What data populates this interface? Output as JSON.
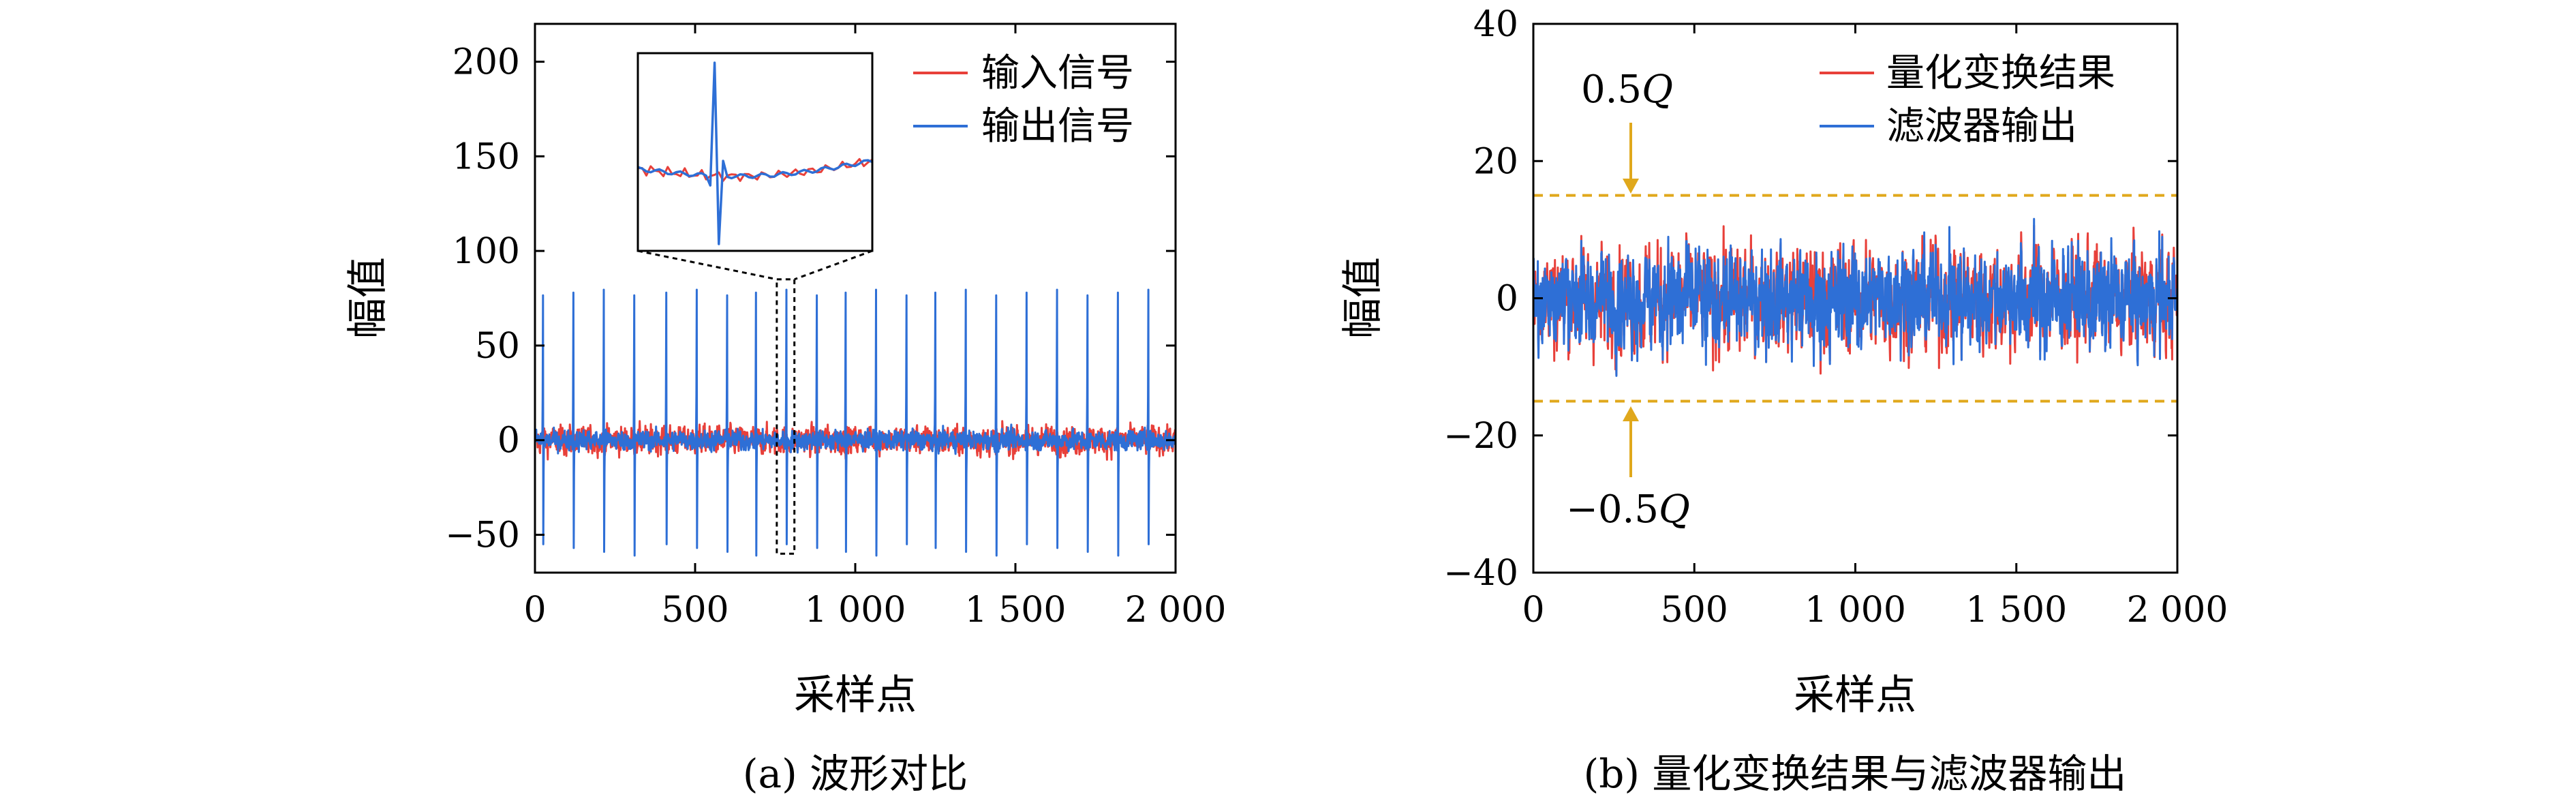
{
  "chart_data": [
    {
      "type": "line",
      "panel": "a",
      "caption": "(a) 波形对比",
      "xlabel": "采样点",
      "ylabel": "幅值",
      "xlim": [
        0,
        2000
      ],
      "ylim": [
        -70,
        220
      ],
      "xticks": [
        0,
        500,
        1000,
        1500,
        2000
      ],
      "xtick_labels": [
        "0",
        "500",
        "1 000",
        "1 500",
        "2 000"
      ],
      "yticks": [
        -50,
        0,
        50,
        100,
        150,
        200
      ],
      "ytick_labels": [
        "−50",
        "0",
        "50",
        "100",
        "150",
        "200"
      ],
      "legend": "top-right",
      "grid": false,
      "series": [
        {
          "name": "输入信号",
          "color": "#e8403a",
          "kind": "noise",
          "amplitude": 7,
          "samples": 2000
        },
        {
          "name": "输出信号",
          "color": "#2e6fd6",
          "kind": "spike-train",
          "spike_positions": [
            25,
            120,
            215,
            310,
            410,
            505,
            600,
            690,
            785,
            880,
            970,
            1065,
            1160,
            1250,
            1345,
            1440,
            1535,
            1630,
            1725,
            1820,
            1915
          ],
          "spike_peak": 78,
          "spike_trough": -55,
          "baseline_amplitude": 5
        }
      ],
      "inset": {
        "zoom_x_range": [
          755,
          810
        ],
        "zoom_y_range": [
          -60,
          85
        ]
      }
    },
    {
      "type": "line",
      "panel": "b",
      "caption": "(b) 量化变换结果与滤波器输出",
      "xlabel": "采样点",
      "ylabel": "幅值",
      "xlim": [
        0,
        2000
      ],
      "ylim": [
        -40,
        40
      ],
      "xticks": [
        0,
        500,
        1000,
        1500,
        2000
      ],
      "xtick_labels": [
        "0",
        "500",
        "1 000",
        "1 500",
        "2 000"
      ],
      "yticks": [
        -40,
        -20,
        0,
        20,
        40
      ],
      "ytick_labels": [
        "−40",
        "−20",
        "0",
        "20",
        "40"
      ],
      "legend": "top-right",
      "grid": false,
      "series": [
        {
          "name": "量化变换结果",
          "color": "#e8403a",
          "kind": "noise",
          "amplitude": 7.5,
          "samples": 2000
        },
        {
          "name": "滤波器输出",
          "color": "#2e6fd6",
          "kind": "noise",
          "amplitude": 7,
          "samples": 2000
        }
      ],
      "reference_lines": [
        {
          "y": 15,
          "label_text": "0.5",
          "label_var": "Q",
          "color": "#e0a81c"
        },
        {
          "y": -15,
          "label_text": "−0.5",
          "label_var": "Q",
          "color": "#e0a81c"
        }
      ]
    }
  ]
}
